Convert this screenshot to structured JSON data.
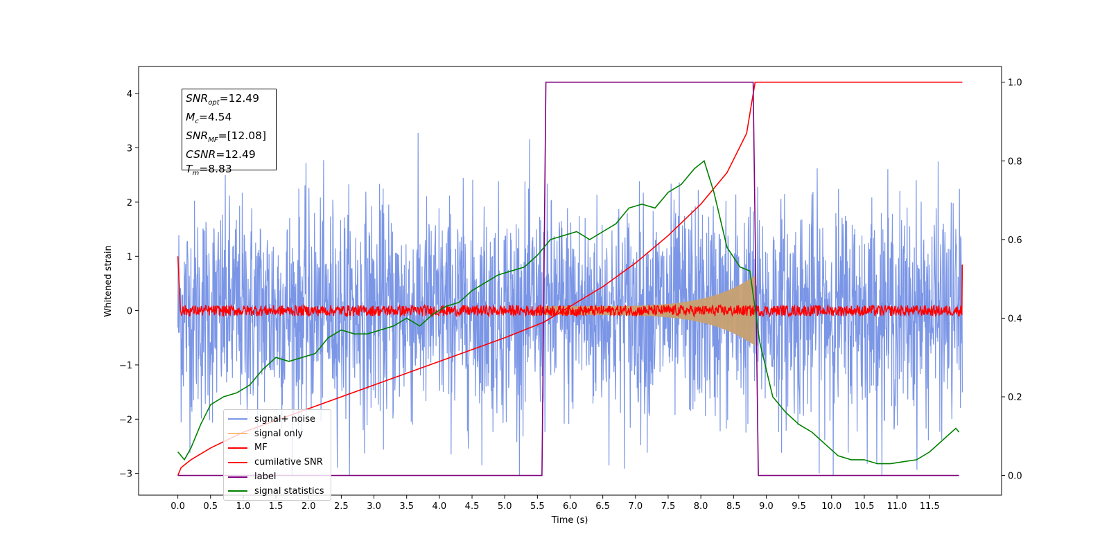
{
  "chart_data": {
    "type": "line",
    "xlabel": "Time (s)",
    "ylabel": "Whitened strain",
    "xlim": [
      -0.6,
      12.6
    ],
    "ylim": [
      -3.4,
      4.5
    ],
    "y2lim": [
      -0.05,
      1.04
    ],
    "xticks": [
      "0.0",
      "0.5",
      "1.0",
      "1.5",
      "2.0",
      "2.5",
      "3.0",
      "3.5",
      "4.0",
      "4.5",
      "5.0",
      "5.5",
      "6.0",
      "6.5",
      "7.0",
      "7.5",
      "8.0",
      "8.5",
      "9.0",
      "9.5",
      "10.0",
      "10.5",
      "11.0",
      "11.5"
    ],
    "yticks": [
      "−3",
      "−2",
      "−1",
      "0",
      "1",
      "2",
      "3",
      "4"
    ],
    "y2ticks": [
      "0.0",
      "0.2",
      "0.4",
      "0.6",
      "0.8",
      "1.0"
    ],
    "grid": false,
    "legend_position": "lower left",
    "annotation": {
      "snr_opt": "=12.49",
      "mc": "=4.54",
      "snr_mf": "=[12.08]",
      "csnr": "=12.49",
      "tm": "=8.83"
    },
    "series": [
      {
        "name": "signal+ noise",
        "color": "#7b96e6",
        "axis": "left",
        "style": "noise",
        "x_range": [
          0.0,
          12.0
        ],
        "amplitude_sigma": 1.0
      },
      {
        "name": "signal only",
        "color": "#c8a070",
        "axis": "left",
        "style": "envelope",
        "x_range": [
          5.5,
          8.83
        ],
        "envelope_start": 0.08,
        "envelope_peak": 0.65
      },
      {
        "name": "MF",
        "color": "#ff0000",
        "axis": "left",
        "style": "mf",
        "x_range": [
          0.0,
          12.0
        ],
        "noise_amplitude": 0.1
      },
      {
        "name": "cumilative SNR",
        "color": "#ff0000",
        "axis": "right",
        "style": "line",
        "x": [
          0.0,
          0.05,
          0.2,
          0.5,
          1.0,
          2.0,
          3.0,
          4.0,
          5.0,
          5.6,
          6.0,
          6.5,
          7.0,
          7.5,
          8.0,
          8.4,
          8.7,
          8.83,
          9.0,
          12.0
        ],
        "y": [
          0.0,
          0.02,
          0.04,
          0.07,
          0.11,
          0.17,
          0.23,
          0.29,
          0.35,
          0.39,
          0.43,
          0.48,
          0.54,
          0.61,
          0.69,
          0.77,
          0.87,
          1.0,
          1.0,
          1.0
        ]
      },
      {
        "name": "label",
        "color": "#800080",
        "axis": "right",
        "style": "line",
        "x": [
          0.0,
          5.57,
          5.63,
          8.8,
          8.88,
          11.95
        ],
        "y": [
          0.0,
          0.0,
          1.0,
          1.0,
          0.0,
          0.0
        ]
      },
      {
        "name": "signal statistics",
        "color": "#008000",
        "axis": "right",
        "style": "line",
        "x": [
          0.0,
          0.1,
          0.2,
          0.35,
          0.5,
          0.7,
          0.9,
          1.1,
          1.3,
          1.5,
          1.7,
          1.9,
          2.1,
          2.3,
          2.5,
          2.7,
          2.9,
          3.1,
          3.3,
          3.5,
          3.7,
          3.9,
          4.1,
          4.3,
          4.5,
          4.7,
          4.9,
          5.1,
          5.3,
          5.5,
          5.7,
          5.9,
          6.1,
          6.3,
          6.5,
          6.7,
          6.9,
          7.1,
          7.3,
          7.5,
          7.7,
          7.9,
          8.05,
          8.2,
          8.4,
          8.6,
          8.75,
          8.9,
          9.1,
          9.3,
          9.5,
          9.7,
          9.9,
          10.1,
          10.3,
          10.5,
          10.7,
          10.9,
          11.1,
          11.3,
          11.5,
          11.7,
          11.9,
          11.95
        ],
        "y": [
          0.06,
          0.04,
          0.07,
          0.13,
          0.18,
          0.2,
          0.21,
          0.23,
          0.27,
          0.3,
          0.29,
          0.3,
          0.31,
          0.35,
          0.37,
          0.36,
          0.36,
          0.37,
          0.38,
          0.4,
          0.38,
          0.41,
          0.43,
          0.44,
          0.47,
          0.49,
          0.51,
          0.52,
          0.53,
          0.56,
          0.6,
          0.61,
          0.62,
          0.6,
          0.62,
          0.64,
          0.68,
          0.69,
          0.68,
          0.72,
          0.74,
          0.78,
          0.8,
          0.72,
          0.58,
          0.53,
          0.52,
          0.34,
          0.2,
          0.16,
          0.13,
          0.11,
          0.08,
          0.05,
          0.04,
          0.04,
          0.03,
          0.03,
          0.035,
          0.04,
          0.06,
          0.09,
          0.12,
          0.11
        ]
      }
    ]
  }
}
